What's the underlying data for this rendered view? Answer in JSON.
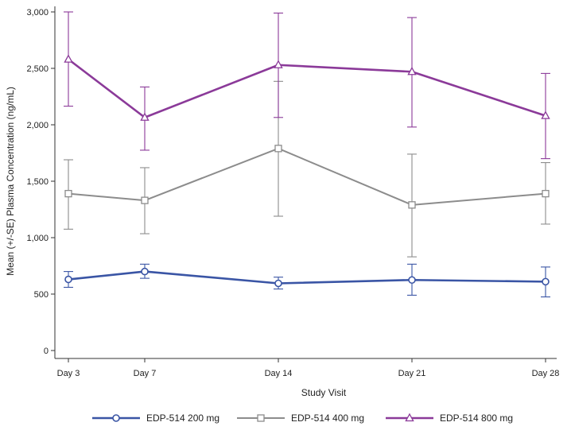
{
  "chart_data": {
    "type": "line",
    "title": "",
    "xlabel": "Study Visit",
    "ylabel": "Mean (+/-SE) Plasma Concentration (ng/mL)",
    "x": [
      3,
      7,
      14,
      21,
      28
    ],
    "x_tick_labels": [
      "Day 3",
      "Day 7",
      "Day 14",
      "Day 21",
      "Day 28"
    ],
    "xlim": [
      3,
      28
    ],
    "ylim": [
      0,
      3000
    ],
    "y_ticks": [
      0,
      500,
      1000,
      1500,
      2000,
      2500,
      3000
    ],
    "y_tick_labels": [
      "0",
      "500",
      "1,000",
      "1,500",
      "2,000",
      "2,500",
      "3,000"
    ],
    "grid": false,
    "legend_position": "bottom",
    "series": [
      {
        "name": "EDP-514 200 mg",
        "color": "#3a55a5",
        "marker": "circle",
        "values": [
          630,
          700,
          595,
          625,
          610
        ],
        "err_low": [
          560,
          640,
          545,
          490,
          475
        ],
        "err_high": [
          700,
          765,
          650,
          765,
          740
        ]
      },
      {
        "name": "EDP-514 400 mg",
        "color": "#8c8c8c",
        "marker": "square",
        "values": [
          1390,
          1330,
          1790,
          1290,
          1390
        ],
        "err_low": [
          1075,
          1035,
          1190,
          830,
          1120
        ],
        "err_high": [
          1690,
          1620,
          2385,
          1740,
          1665
        ]
      },
      {
        "name": "EDP-514 800 mg",
        "color": "#8b3a99",
        "marker": "triangle",
        "values": [
          2580,
          2065,
          2530,
          2470,
          2080
        ],
        "err_low": [
          2165,
          1775,
          2065,
          1980,
          1700
        ],
        "err_high": [
          3000,
          2335,
          2990,
          2950,
          2455
        ]
      }
    ]
  }
}
